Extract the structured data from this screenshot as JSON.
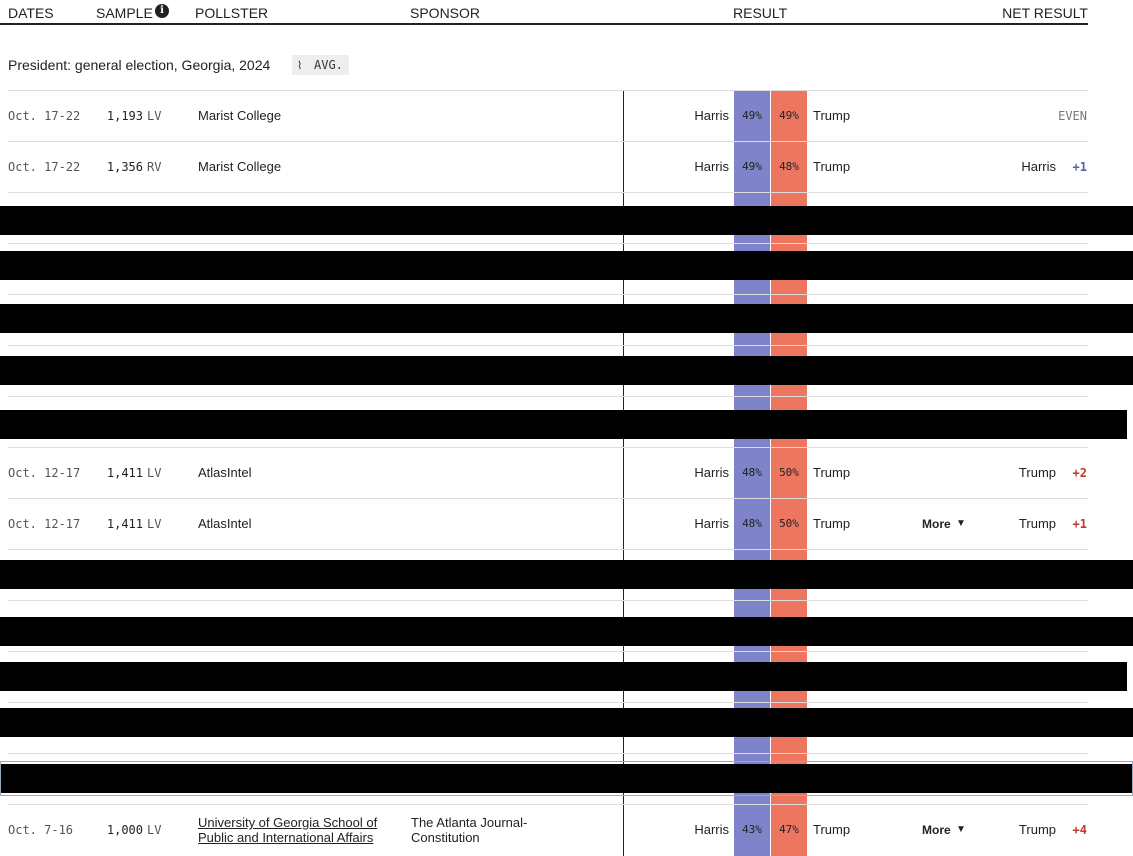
{
  "header": {
    "columns": [
      "DATES",
      "SAMPLE",
      "POLLSTER",
      "SPONSOR",
      "RESULT",
      "NET RESULT"
    ]
  },
  "section": {
    "title": "President: general election, Georgia, 2024",
    "badge": "AVG."
  },
  "rows": [
    {
      "dates": "Oct. 17-22",
      "sample": "1,193",
      "population": "LV",
      "pollster": "Marist College",
      "dem": "Harris",
      "dem_pct": "49%",
      "rep_pct": "49%",
      "rep": "Trump",
      "net": "EVEN"
    },
    {
      "dates": "Oct. 17-22",
      "sample": "1,356",
      "population": "RV",
      "pollster": "Marist College",
      "dem": "Harris",
      "dem_pct": "49%",
      "rep_pct": "48%",
      "rep": "Trump",
      "net_leader": "Harris",
      "net": "+1"
    },
    {
      "dates": "Oct. 12-17",
      "sample": "1,411",
      "population": "LV",
      "pollster": "AtlasIntel",
      "dem": "Harris",
      "dem_pct": "48%",
      "rep_pct": "50%",
      "rep": "Trump",
      "net_leader": "Trump",
      "net": "+2"
    },
    {
      "dates": "Oct. 12-17",
      "sample": "1,411",
      "population": "LV",
      "pollster": "AtlasIntel",
      "dem": "Harris",
      "dem_pct": "48%",
      "rep_pct": "50%",
      "rep": "Trump",
      "more": "More",
      "net_leader": "Trump",
      "net": "+1"
    },
    {
      "dates": "Oct. 7-16",
      "sample": "1,000",
      "population": "LV",
      "pollster": "University of Georgia School of Public and International Affairs",
      "sponsor": "The Atlanta Journal-Constitution",
      "dem": "Harris",
      "dem_pct": "43%",
      "rep_pct": "47%",
      "rep": "Trump",
      "more": "More",
      "net_leader": "Trump",
      "net": "+4"
    }
  ]
}
